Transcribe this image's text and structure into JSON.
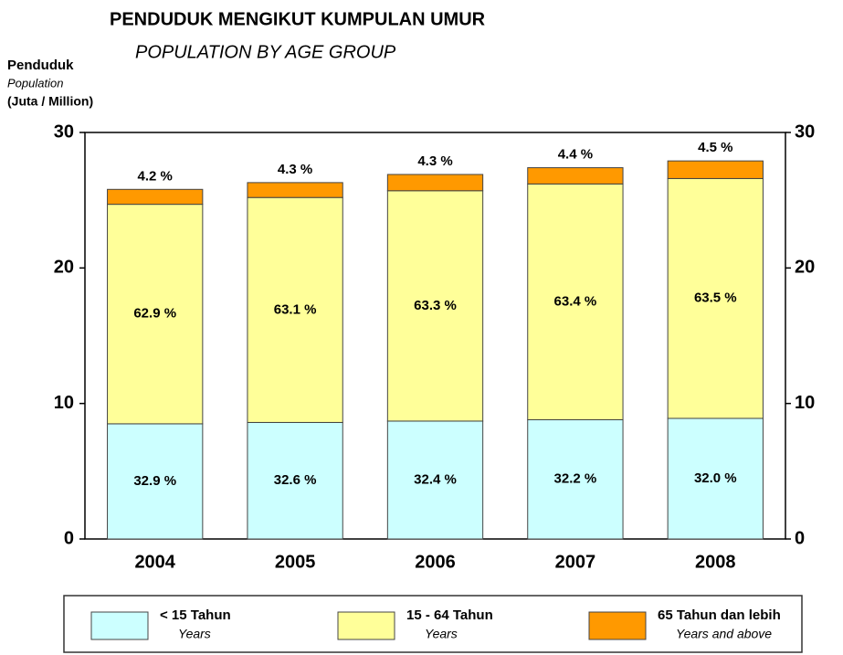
{
  "chart_data": {
    "type": "stacked_bar",
    "title": "PENDUDUK MENGIKUT KUMPULAN UMUR",
    "subtitle": "POPULATION BY AGE GROUP",
    "y_label": [
      "Penduduk",
      "Population",
      "(Juta / Million)"
    ],
    "categories": [
      "2004",
      "2005",
      "2006",
      "2007",
      "2008"
    ],
    "series": [
      {
        "name": "< 15 Tahun",
        "name_en": "Years",
        "color": "#ccffff",
        "values": [
          8.5,
          8.6,
          8.7,
          8.8,
          8.9
        ],
        "labels": [
          "32.9 %",
          "32.6 %",
          "32.4 %",
          "32.2 %",
          "32.0 %"
        ]
      },
      {
        "name": "15 - 64 Tahun",
        "name_en": "Years",
        "color": "#ffff99",
        "values": [
          16.2,
          16.6,
          17.0,
          17.4,
          17.7
        ],
        "labels": [
          "62.9 %",
          "63.1 %",
          "63.3 %",
          "63.4 %",
          "63.5 %"
        ]
      },
      {
        "name": "65 Tahun dan lebih",
        "name_en": "Years and above",
        "color": "#ff9900",
        "values": [
          1.1,
          1.1,
          1.2,
          1.2,
          1.3
        ],
        "labels": [
          "4.2 %",
          "4.3 %",
          "4.3 %",
          "4.4 %",
          "4.5 %"
        ]
      }
    ],
    "ylim": [
      0,
      30
    ],
    "yticks": [
      0,
      10,
      20,
      30
    ],
    "y2lim": [
      0,
      30
    ],
    "y2ticks": [
      0,
      10,
      20,
      30
    ]
  }
}
